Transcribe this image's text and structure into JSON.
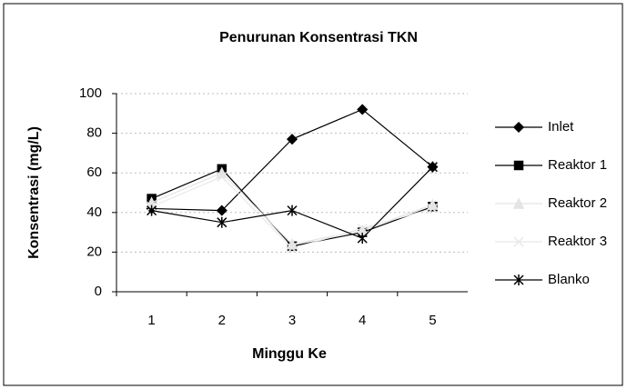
{
  "chart_data": {
    "type": "line",
    "title": "Penurunan Konsentrasi TKN",
    "xlabel": "Minggu Ke",
    "ylabel": "Konsentrasi (mg/L)",
    "categories": [
      "1",
      "2",
      "3",
      "4",
      "5"
    ],
    "series": [
      {
        "name": "Inlet",
        "color": "#000000",
        "marker": "diamond",
        "values": [
          42,
          41,
          77,
          92,
          63
        ]
      },
      {
        "name": "Reaktor 1",
        "color": "#000000",
        "marker": "square",
        "values": [
          47,
          62,
          23,
          30,
          43
        ]
      },
      {
        "name": "Reaktor 2",
        "color": "#e4e4e4",
        "marker": "triangle",
        "values": [
          45,
          60,
          24,
          31,
          44
        ]
      },
      {
        "name": "Reaktor 3",
        "color": "#e8e8e8",
        "marker": "x",
        "values": [
          43,
          58,
          22,
          32,
          42
        ]
      },
      {
        "name": "Blanko",
        "color": "#000000",
        "marker": "asterisk",
        "values": [
          41,
          35,
          41,
          27,
          63
        ]
      }
    ],
    "ylim": [
      0,
      100
    ],
    "yticks": [
      0,
      20,
      40,
      60,
      80,
      100
    ],
    "grid": true,
    "legend": "right"
  }
}
